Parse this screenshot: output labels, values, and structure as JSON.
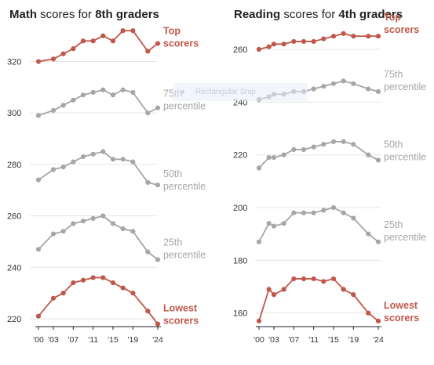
{
  "snip_overlay": {
    "label": "Rectangular Snip",
    "icon": "snip-icon"
  },
  "colors": {
    "extreme": "#c0574a",
    "percentile": "#a6a6a6",
    "ticks": "#333333"
  },
  "chart_data": [
    {
      "type": "line",
      "title_parts": [
        {
          "text": "Math",
          "bold": true
        },
        {
          "text": " scores for ",
          "bold": false
        },
        {
          "text": "8th graders",
          "bold": true
        }
      ],
      "ylim": [
        213,
        336
      ],
      "yticks": [
        220,
        240,
        260,
        280,
        300,
        320
      ],
      "x": [
        2000,
        2003,
        2005,
        2007,
        2009,
        2011,
        2013,
        2015,
        2017,
        2019,
        2022,
        2024
      ],
      "xticks": [
        {
          "x": 2000,
          "label": "'00"
        },
        {
          "x": 2003,
          "label": "'03"
        },
        {
          "x": 2007,
          "label": "'07"
        },
        {
          "x": 2011,
          "label": "'11"
        },
        {
          "x": 2015,
          "label": "'15"
        },
        {
          "x": 2019,
          "label": "'19"
        },
        {
          "x": 2024,
          "label": "'24"
        }
      ],
      "series": [
        {
          "name": "Top scorers",
          "label_lines": [
            "Top",
            "scorers"
          ],
          "group": "extreme",
          "values": [
            320,
            321,
            323,
            325,
            328,
            328,
            330,
            328,
            332,
            332,
            324,
            327
          ]
        },
        {
          "name": "75th percentile",
          "label_lines": [
            "75th",
            "percentile"
          ],
          "group": "percentile",
          "values": [
            299,
            301,
            303,
            305,
            307,
            308,
            309,
            307,
            309,
            308,
            300,
            302
          ]
        },
        {
          "name": "50th percentile",
          "label_lines": [
            "50th",
            "percentile"
          ],
          "group": "percentile",
          "values": [
            274,
            278,
            279,
            281,
            283,
            284,
            285,
            282,
            282,
            281,
            273,
            272
          ]
        },
        {
          "name": "25th percentile",
          "label_lines": [
            "25th",
            "percentile"
          ],
          "group": "percentile",
          "values": [
            247,
            253,
            254,
            257,
            258,
            259,
            260,
            257,
            255,
            254,
            246,
            243
          ]
        },
        {
          "name": "Lowest scorers",
          "label_lines": [
            "Lowest",
            "scorers"
          ],
          "group": "extreme",
          "values": [
            221,
            228,
            230,
            234,
            235,
            236,
            236,
            234,
            232,
            230,
            223,
            218
          ]
        }
      ]
    },
    {
      "type": "line",
      "title_parts": [
        {
          "text": "Reading",
          "bold": true
        },
        {
          "text": " scores for ",
          "bold": false
        },
        {
          "text": "4th graders",
          "bold": true
        }
      ],
      "ylim": [
        151,
        271
      ],
      "yticks": [
        160,
        180,
        200,
        220,
        240,
        260
      ],
      "x": [
        2000,
        2002,
        2003,
        2005,
        2007,
        2009,
        2011,
        2013,
        2015,
        2017,
        2019,
        2022,
        2024
      ],
      "xticks": [
        {
          "x": 2000,
          "label": "'00"
        },
        {
          "x": 2003,
          "label": "'03"
        },
        {
          "x": 2007,
          "label": "'07"
        },
        {
          "x": 2011,
          "label": "'11"
        },
        {
          "x": 2015,
          "label": "'15"
        },
        {
          "x": 2019,
          "label": "'19"
        },
        {
          "x": 2024,
          "label": "'24"
        }
      ],
      "series": [
        {
          "name": "Top scorers",
          "label_lines": [
            "Top",
            "scorers"
          ],
          "group": "extreme",
          "values": [
            260,
            261,
            262,
            262,
            263,
            263,
            263,
            264,
            265,
            266,
            265,
            265,
            265
          ]
        },
        {
          "name": "75th percentile",
          "label_lines": [
            "75th",
            "percentile"
          ],
          "group": "percentile",
          "values": [
            241,
            242,
            243,
            243,
            244,
            244,
            245,
            246,
            247,
            248,
            247,
            245,
            244
          ]
        },
        {
          "name": "50th percentile",
          "label_lines": [
            "50th",
            "percentile"
          ],
          "group": "percentile",
          "values": [
            215,
            219,
            219,
            220,
            222,
            222,
            223,
            224,
            225,
            225,
            224,
            220,
            218
          ]
        },
        {
          "name": "25th percentile",
          "label_lines": [
            "25th",
            "percentile"
          ],
          "group": "percentile",
          "values": [
            187,
            194,
            193,
            194,
            198,
            198,
            198,
            199,
            200,
            198,
            196,
            190,
            187
          ]
        },
        {
          "name": "Lowest scorers",
          "label_lines": [
            "Lowest",
            "scorers"
          ],
          "group": "extreme",
          "values": [
            157,
            169,
            167,
            169,
            173,
            173,
            173,
            172,
            173,
            169,
            167,
            160,
            157
          ]
        }
      ]
    }
  ]
}
